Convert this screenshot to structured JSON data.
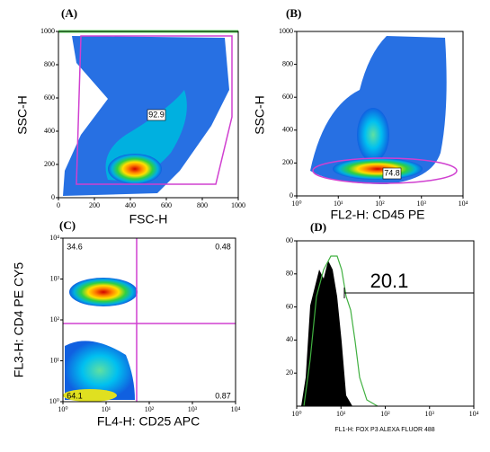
{
  "chart_data": [
    {
      "type": "density",
      "panel": "(A)",
      "xlabel": "FSC-H",
      "ylabel": "SSC-H",
      "xlim": [
        0,
        1000
      ],
      "ylim": [
        0,
        1000
      ],
      "xticks": [
        0,
        200,
        400,
        600,
        800,
        1000
      ],
      "yticks": [
        0,
        200,
        400,
        600,
        800,
        1000
      ],
      "annotations": [
        "92.9"
      ]
    },
    {
      "type": "density",
      "panel": "(B)",
      "xlabel": "FL2-H: CD45 PE",
      "ylabel": "SSC-H",
      "xlog": true,
      "xlim": [
        1,
        10000
      ],
      "ylim": [
        0,
        1000
      ],
      "xticks": [
        {
          "value": 1,
          "label": "10⁰"
        },
        {
          "value": 10,
          "label": "10¹"
        },
        {
          "value": 100,
          "label": "10²"
        },
        {
          "value": 1000,
          "label": "10³"
        },
        {
          "value": 10000,
          "label": "10⁴"
        }
      ],
      "yticks": [
        0,
        200,
        400,
        600,
        800,
        1000
      ],
      "annotations": [
        "74.8"
      ]
    },
    {
      "type": "density",
      "panel": "(C)",
      "xlabel": "FL4-H: CD25 APC",
      "ylabel": "FL3-H: CD4 PE CY5",
      "xlog": true,
      "ylog": true,
      "xlim": [
        1,
        10000
      ],
      "ylim": [
        1,
        10000
      ],
      "xticks": [
        {
          "value": 1,
          "label": "10⁰"
        },
        {
          "value": 10,
          "label": "10¹"
        },
        {
          "value": 100,
          "label": "10²"
        },
        {
          "value": 1000,
          "label": "10³"
        },
        {
          "value": 10000,
          "label": "10⁴"
        }
      ],
      "yticks": [
        {
          "value": 1,
          "label": "10⁰"
        },
        {
          "value": 10,
          "label": "10¹"
        },
        {
          "value": 100,
          "label": "10²"
        },
        {
          "value": 1000,
          "label": "10³"
        },
        {
          "value": 10000,
          "label": "10⁴"
        }
      ],
      "annotations": [
        "34.6",
        "0.48",
        "64.1",
        "0.87"
      ]
    },
    {
      "type": "histogram",
      "panel": "(D)",
      "xlabel": "FL1-H: FOX P3 ALEXA FLUOR 488",
      "xlog": true,
      "xlim": [
        1,
        10000
      ],
      "ylim": [
        0,
        100
      ],
      "xticks": [
        {
          "value": 1,
          "label": "10⁰"
        },
        {
          "value": 10,
          "label": "10¹"
        },
        {
          "value": 100,
          "label": "10²"
        },
        {
          "value": 1000,
          "label": "10³"
        },
        {
          "value": 10000,
          "label": "10⁴"
        }
      ],
      "yticks": [
        {
          "value": 100,
          "label": "00"
        },
        80,
        60,
        40,
        20
      ],
      "annotations": [
        "20.1"
      ]
    }
  ]
}
